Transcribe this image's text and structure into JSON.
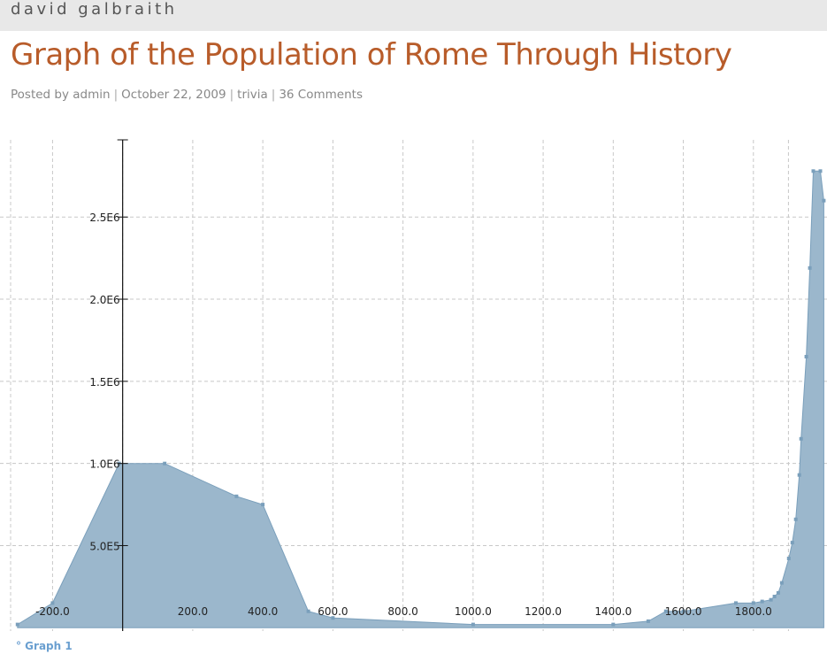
{
  "site": {
    "name": "david galbraith"
  },
  "post": {
    "title": "Graph of the Population of Rome Through History",
    "meta": {
      "prefix": "Posted by",
      "author": "admin",
      "date": "October 22, 2009",
      "category": "trivia",
      "comments": "36 Comments",
      "separator": "|"
    }
  },
  "colors": {
    "fill": "#9bb7cc",
    "stroke": "#7a9fbb",
    "title": "#b85c2a",
    "grid": "#c8c8c8",
    "legend": "#6a9fd0"
  },
  "chart_data": {
    "type": "area",
    "grid": true,
    "legend_placement": "bottom-left",
    "xlim": [
      -350,
      2010
    ],
    "ylim": [
      -20000,
      2970000
    ],
    "x_ticks": [
      -200,
      200,
      400,
      600,
      800,
      1000,
      1200,
      1400,
      1600,
      1800
    ],
    "x_tick_labels": [
      "-200.0",
      "200.0",
      "400.0",
      "600.0",
      "800.0",
      "1000.0",
      "1200.0",
      "1400.0",
      "1600.0",
      "1800.0"
    ],
    "y_ticks": [
      500000,
      1000000,
      1500000,
      2000000,
      2500000
    ],
    "y_tick_labels": [
      "5.0E5",
      "1.0E6",
      "1.5E6",
      "2.0E6",
      "2.5E6"
    ],
    "series": [
      {
        "name": "Graph 1",
        "points": [
          [
            -300,
            20000
          ],
          [
            -200,
            150000
          ],
          [
            -10,
            1000000
          ],
          [
            120,
            1000000
          ],
          [
            325,
            800000
          ],
          [
            400,
            750000
          ],
          [
            530,
            100000
          ],
          [
            600,
            60000
          ],
          [
            1000,
            20000
          ],
          [
            1400,
            20000
          ],
          [
            1500,
            40000
          ],
          [
            1550,
            100000
          ],
          [
            1600,
            100000
          ],
          [
            1750,
            150000
          ],
          [
            1800,
            150000
          ],
          [
            1825,
            160000
          ],
          [
            1850,
            170000
          ],
          [
            1860,
            190000
          ],
          [
            1871,
            212000
          ],
          [
            1881,
            273000
          ],
          [
            1901,
            422000
          ],
          [
            1911,
            518000
          ],
          [
            1921,
            660000
          ],
          [
            1931,
            930000
          ],
          [
            1936,
            1150000
          ],
          [
            1951,
            1650000
          ],
          [
            1961,
            2190000
          ],
          [
            1971,
            2780000
          ],
          [
            1991,
            2780000
          ],
          [
            2001,
            2600000
          ]
        ]
      }
    ]
  }
}
